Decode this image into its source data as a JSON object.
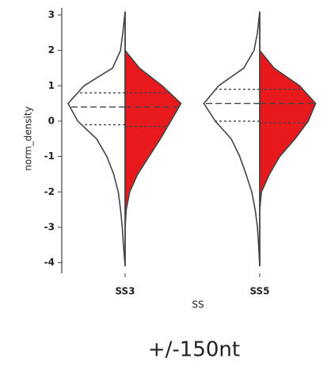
{
  "chart_data": {
    "type": "violin",
    "title": "+/-150nt",
    "x_label": "SS",
    "y_label": "norm_density",
    "categories": [
      "SS3",
      "SS5"
    ],
    "ylim": [
      -4.3,
      3.2
    ],
    "yticks": [
      -4,
      -3,
      -2,
      -1,
      0,
      1,
      2,
      3
    ],
    "density_y": [
      -4.1,
      -3.5,
      -3,
      -2.5,
      -2,
      -1.5,
      -1,
      -0.5,
      0,
      0.5,
      1,
      1.5,
      2,
      2.5,
      3.1
    ],
    "series": [
      {
        "side": "left",
        "color": "#ffffff",
        "widths": [
          [
            0,
            0.03,
            0.05,
            0.08,
            0.12,
            0.2,
            0.32,
            0.5,
            0.83,
            1.0,
            0.72,
            0.22,
            0.08,
            0.04,
            0
          ],
          [
            0,
            0.02,
            0.04,
            0.08,
            0.14,
            0.24,
            0.35,
            0.5,
            0.78,
            0.98,
            0.72,
            0.28,
            0.1,
            0.04,
            0
          ]
        ],
        "quartiles": [
          [
            -0.1,
            0.4,
            0.8
          ],
          [
            0.0,
            0.5,
            0.9
          ]
        ]
      },
      {
        "side": "right",
        "color": "#e8191c",
        "widths": [
          [
            0,
            0,
            0,
            0.02,
            0.08,
            0.22,
            0.42,
            0.62,
            0.8,
            0.98,
            0.65,
            0.25,
            0,
            0,
            0
          ],
          [
            0,
            0,
            0,
            0,
            0.03,
            0.17,
            0.35,
            0.62,
            0.85,
            0.98,
            0.7,
            0.25,
            0,
            0,
            0
          ]
        ],
        "quartiles": [
          [
            -0.15,
            0.4,
            0.8
          ],
          [
            -0.05,
            0.5,
            0.9
          ]
        ]
      }
    ]
  }
}
